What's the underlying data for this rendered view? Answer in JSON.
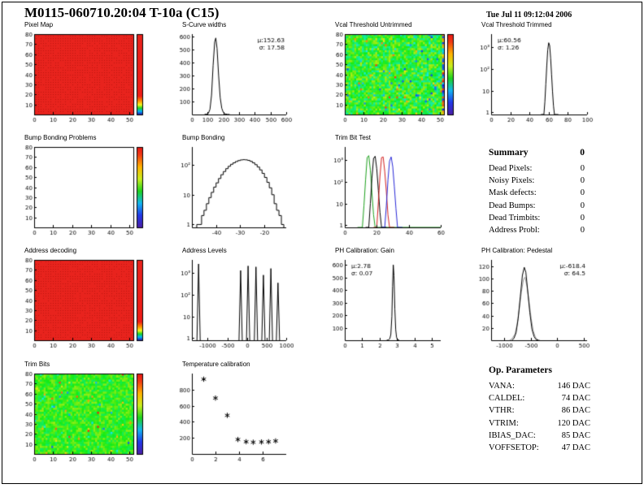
{
  "page": {
    "title": "M0115-060710.20:04 T-10a (C15)",
    "datetime": "Tue Jul 11 09:12:04 2006"
  },
  "summary": {
    "title": "Summary",
    "value": "0",
    "rows": [
      {
        "label": "Dead Pixels:",
        "value": "0"
      },
      {
        "label": "Noisy Pixels:",
        "value": "0"
      },
      {
        "label": "Mask defects:",
        "value": "0"
      },
      {
        "label": "Dead Bumps:",
        "value": "0"
      },
      {
        "label": "Dead Trimbits:",
        "value": "0"
      },
      {
        "label": "Address Probl:",
        "value": "0"
      }
    ]
  },
  "op_parameters": {
    "title": "Op. Parameters",
    "rows": [
      {
        "label": "VANA:",
        "value": "146 DAC"
      },
      {
        "label": "CALDEL:",
        "value": "74 DAC"
      },
      {
        "label": "VTHR:",
        "value": "86 DAC"
      },
      {
        "label": "VTRIM:",
        "value": "120 DAC"
      },
      {
        "label": "IBIAS_DAC:",
        "value": "85 DAC"
      },
      {
        "label": "VOFFSETOP:",
        "value": "47 DAC"
      }
    ]
  },
  "chart_data": [
    {
      "id": "pixel-map",
      "title": "Pixel Map",
      "type": "heatmap",
      "palette": "red",
      "xlim": [
        0,
        52
      ],
      "ylim": [
        0,
        80
      ],
      "xticks": [
        0,
        10,
        20,
        30,
        40,
        50
      ],
      "yticks": [
        10,
        20,
        30,
        40,
        50,
        60,
        70,
        80
      ],
      "colorbar": [
        [
          0,
          "#2318a8"
        ],
        [
          0.04,
          "#00b4ff"
        ],
        [
          0.08,
          "#1ed31e"
        ],
        [
          0.12,
          "#f8f81e"
        ],
        [
          0.17,
          "#ff8c00"
        ],
        [
          0.23,
          "#ee1c16"
        ],
        [
          1,
          "#e8231d"
        ]
      ]
    },
    {
      "id": "s-curve-widths",
      "title": "S-Curve widths",
      "type": "hist",
      "style": "line",
      "xlim": [
        0,
        600
      ],
      "ylim": [
        0,
        620
      ],
      "xticks": [
        0,
        100,
        200,
        300,
        400,
        500,
        600
      ],
      "yticks": [
        100,
        200,
        300,
        400,
        500,
        600
      ],
      "stats": [
        "μ:152.63",
        "σ: 17.58"
      ],
      "stats_pos": "right",
      "points": [
        [
          80,
          0
        ],
        [
          95,
          3
        ],
        [
          105,
          10
        ],
        [
          115,
          40
        ],
        [
          125,
          150
        ],
        [
          135,
          380
        ],
        [
          145,
          560
        ],
        [
          152,
          590
        ],
        [
          160,
          510
        ],
        [
          170,
          300
        ],
        [
          180,
          130
        ],
        [
          190,
          48
        ],
        [
          200,
          16
        ],
        [
          210,
          5
        ],
        [
          225,
          1
        ],
        [
          240,
          0
        ]
      ]
    },
    {
      "id": "vcal-threshold-untrimmed",
      "title": "Vcal Threshold Untrimmed",
      "type": "heatmap",
      "palette": "noise",
      "mean": 0.5,
      "spread": 0.18,
      "outlier": 0.1,
      "edge": true,
      "xlim": [
        0,
        52
      ],
      "ylim": [
        0,
        80
      ],
      "xticks": [
        0,
        10,
        20,
        30,
        40,
        50
      ],
      "yticks": [
        10,
        20,
        30,
        40,
        50,
        60,
        70,
        80
      ],
      "colorbar": [
        [
          0,
          "#4b1fa8"
        ],
        [
          0.15,
          "#2238e8"
        ],
        [
          0.3,
          "#12b6f0"
        ],
        [
          0.45,
          "#1ed31e"
        ],
        [
          0.6,
          "#c8ee1e"
        ],
        [
          0.75,
          "#ffb400"
        ],
        [
          0.9,
          "#f03c14"
        ],
        [
          1,
          "#e81414"
        ]
      ]
    },
    {
      "id": "vcal-threshold-trimmed",
      "title": "Vcal Threshold Trimmed",
      "type": "hist",
      "style": "line",
      "logy": true,
      "xlim": [
        0,
        100
      ],
      "ylim": [
        0.8,
        4000
      ],
      "xticks": [
        0,
        20,
        40,
        60,
        80,
        100
      ],
      "yticks": [
        {
          "v": 1,
          "l": "1"
        },
        {
          "v": 10,
          "l": "10"
        },
        {
          "v": 100,
          "l": "10²"
        },
        {
          "v": 1000,
          "l": "10³"
        }
      ],
      "stats": [
        "μ:60.56",
        "σ: 1.26"
      ],
      "stats_pos": "left",
      "points": [
        [
          52,
          0
        ],
        [
          55,
          0
        ],
        [
          56,
          3
        ],
        [
          57,
          20
        ],
        [
          58,
          140
        ],
        [
          59,
          750
        ],
        [
          60,
          1600
        ],
        [
          61,
          1200
        ],
        [
          62,
          320
        ],
        [
          63,
          55
        ],
        [
          64,
          9
        ],
        [
          65,
          2
        ],
        [
          66,
          0
        ],
        [
          70,
          0
        ]
      ]
    },
    {
      "id": "bump-bonding-problems",
      "title": "Bump Bonding Problems",
      "type": "empty2d",
      "xlim": [
        0,
        52
      ],
      "ylim": [
        0,
        80
      ],
      "xticks": [
        0,
        10,
        20,
        30,
        40,
        50
      ],
      "yticks": [
        10,
        20,
        30,
        40,
        50,
        60,
        70,
        80
      ],
      "colorbar": [
        [
          0,
          "#4b1fa8"
        ],
        [
          0.15,
          "#2238e8"
        ],
        [
          0.3,
          "#12b6f0"
        ],
        [
          0.45,
          "#1ed31e"
        ],
        [
          0.6,
          "#c8ee1e"
        ],
        [
          0.75,
          "#ffb400"
        ],
        [
          0.9,
          "#f03c14"
        ],
        [
          1,
          "#e81414"
        ]
      ]
    },
    {
      "id": "bump-bonding",
      "title": "Bump Bonding",
      "type": "hist",
      "style": "steps",
      "logy": true,
      "xlim": [
        -50,
        -11
      ],
      "ylim": [
        0.8,
        400
      ],
      "xticks": [
        -40,
        -30,
        -20
      ],
      "yticks": [
        {
          "v": 1,
          "l": "1"
        },
        {
          "v": 10,
          "l": "10"
        },
        {
          "v": 100,
          "l": "10²"
        }
      ],
      "bins": {
        "x0": -48,
        "dx": 1,
        "values": [
          1,
          1,
          2,
          3,
          5,
          8,
          12,
          18,
          25,
          35,
          47,
          60,
          75,
          90,
          105,
          118,
          130,
          140,
          147,
          150,
          148,
          142,
          132,
          118,
          102,
          85,
          68,
          52,
          38,
          26,
          17,
          10,
          5,
          3,
          2,
          1
        ]
      }
    },
    {
      "id": "trim-bit-test",
      "title": "Trim Bit Test",
      "type": "multi",
      "logy": true,
      "xlim": [
        0,
        60
      ],
      "ylim": [
        0.8,
        4000
      ],
      "xticks": [
        0,
        20,
        40,
        60
      ],
      "yticks": [
        {
          "v": 1,
          "l": "1"
        },
        {
          "v": 10,
          "l": "10"
        },
        {
          "v": 100,
          "l": "10²"
        },
        {
          "v": 1000,
          "l": "10³"
        }
      ],
      "series": [
        {
          "name": "trim-bits-14",
          "color": "#1ca01c",
          "points": [
            [
              8,
              0
            ],
            [
              11,
              0
            ],
            [
              12,
              8
            ],
            [
              13,
              120
            ],
            [
              14,
              1300
            ],
            [
              15,
              1600
            ],
            [
              16,
              350
            ],
            [
              17,
              30
            ],
            [
              18,
              3
            ],
            [
              19,
              0
            ],
            [
              60,
              0
            ]
          ]
        },
        {
          "name": "trim-bits-19",
          "color": "#000000",
          "points": [
            [
              13,
              0
            ],
            [
              15,
              0
            ],
            [
              16,
              10
            ],
            [
              17,
              150
            ],
            [
              18,
              1200
            ],
            [
              19,
              1500
            ],
            [
              20,
              400
            ],
            [
              21,
              40
            ],
            [
              22,
              4
            ],
            [
              23,
              0
            ],
            [
              26,
              0
            ]
          ]
        },
        {
          "name": "trim-bits-24",
          "color": "#d42020",
          "points": [
            [
              18,
              0
            ],
            [
              20,
              0
            ],
            [
              21,
              12
            ],
            [
              22,
              180
            ],
            [
              23,
              1300
            ],
            [
              24,
              1400
            ],
            [
              25,
              300
            ],
            [
              26,
              35
            ],
            [
              27,
              3
            ],
            [
              28,
              0
            ],
            [
              31,
              0
            ]
          ]
        },
        {
          "name": "trim-bits-29",
          "color": "#2828d8",
          "points": [
            [
              23,
              0
            ],
            [
              25,
              0
            ],
            [
              26,
              8
            ],
            [
              27,
              120
            ],
            [
              28,
              900
            ],
            [
              29,
              1400
            ],
            [
              30,
              500
            ],
            [
              31,
              60
            ],
            [
              32,
              6
            ],
            [
              33,
              0
            ],
            [
              36,
              0
            ]
          ]
        }
      ]
    },
    {
      "id": "address-decoding",
      "title": "Address decoding",
      "type": "heatmap",
      "palette": "red",
      "xlim": [
        0,
        52
      ],
      "ylim": [
        0,
        80
      ],
      "xticks": [
        0,
        10,
        20,
        30,
        40,
        50
      ],
      "yticks": [
        10,
        20,
        30,
        40,
        50,
        60,
        70,
        80
      ],
      "colorbar": [
        [
          0,
          "#2318a8"
        ],
        [
          0.04,
          "#00b4ff"
        ],
        [
          0.08,
          "#1ed31e"
        ],
        [
          0.12,
          "#f8f81e"
        ],
        [
          0.17,
          "#ff8c00"
        ],
        [
          0.23,
          "#ee1c16"
        ],
        [
          1,
          "#e8231d"
        ]
      ]
    },
    {
      "id": "address-levels",
      "title": "Address Levels",
      "type": "spikes",
      "logy": true,
      "xlim": [
        -1400,
        1000
      ],
      "ylim": [
        0.8,
        4000
      ],
      "xticks": [
        -1000,
        -500,
        0,
        500,
        1000
      ],
      "yticks": [
        {
          "v": 1,
          "l": "1"
        },
        {
          "v": 10,
          "l": "10"
        },
        {
          "v": 100,
          "l": "10²"
        },
        {
          "v": 1000,
          "l": "10³"
        }
      ],
      "spikes": [
        [
          -1230,
          2600
        ],
        [
          -160,
          1300
        ],
        [
          30,
          2100
        ],
        [
          230,
          1900
        ],
        [
          420,
          800
        ],
        [
          610,
          1600
        ],
        [
          790,
          350
        ]
      ]
    },
    {
      "id": "ph-calibration-gain",
      "title": "PH Calibration: Gain",
      "type": "hist",
      "style": "line",
      "xlim": [
        0,
        5.5
      ],
      "ylim": [
        0,
        640
      ],
      "xticks": [
        0,
        1,
        2,
        3,
        4,
        5
      ],
      "yticks": [
        100,
        200,
        300,
        400,
        500,
        600
      ],
      "stats": [
        "μ:2.78",
        "σ: 0.07"
      ],
      "stats_pos": "left",
      "points": [
        [
          2.4,
          0
        ],
        [
          2.5,
          3
        ],
        [
          2.58,
          12
        ],
        [
          2.64,
          45
        ],
        [
          2.7,
          190
        ],
        [
          2.74,
          430
        ],
        [
          2.78,
          600
        ],
        [
          2.82,
          515
        ],
        [
          2.87,
          250
        ],
        [
          2.92,
          85
        ],
        [
          2.97,
          22
        ],
        [
          3.03,
          5
        ],
        [
          3.12,
          0
        ]
      ]
    },
    {
      "id": "ph-calibration-pedestal",
      "title": "PH Calibration: Pedestal",
      "type": "multi",
      "xlim": [
        -1250,
        560
      ],
      "ylim": [
        0,
        130
      ],
      "xticks": [
        -1000,
        -500,
        0,
        500
      ],
      "yticks": [
        20,
        40,
        60,
        80,
        100,
        120
      ],
      "stats": [
        "μ:-618.4",
        "σ: 64.5"
      ],
      "stats_pos": "right",
      "series": [
        {
          "name": "pedestal-wide",
          "color": "#999999",
          "points": [
            [
              -900,
              0
            ],
            [
              -850,
              3
            ],
            [
              -800,
              10
            ],
            [
              -760,
              25
            ],
            [
              -720,
              50
            ],
            [
              -680,
              78
            ],
            [
              -640,
              98
            ],
            [
              -610,
              102
            ],
            [
              -575,
              88
            ],
            [
              -535,
              62
            ],
            [
              -495,
              35
            ],
            [
              -455,
              15
            ],
            [
              -415,
              5
            ],
            [
              -375,
              1
            ],
            [
              -330,
              0
            ]
          ]
        },
        {
          "name": "pedestal-main",
          "color": "#000000",
          "points": [
            [
              -860,
              0
            ],
            [
              -820,
              3
            ],
            [
              -780,
              12
            ],
            [
              -740,
              35
            ],
            [
              -700,
              70
            ],
            [
              -660,
              105
            ],
            [
              -625,
              118
            ],
            [
              -595,
              110
            ],
            [
              -560,
              80
            ],
            [
              -520,
              45
            ],
            [
              -480,
              18
            ],
            [
              -440,
              6
            ],
            [
              -400,
              1
            ],
            [
              -360,
              0
            ]
          ]
        }
      ]
    },
    {
      "id": "trim-bits",
      "title": "Trim Bits",
      "type": "heatmap",
      "palette": "noise",
      "mean": 0.53,
      "spread": 0.12,
      "outlier": 0.04,
      "xlim": [
        0,
        52
      ],
      "ylim": [
        0,
        80
      ],
      "xticks": [
        0,
        10,
        20,
        30,
        40,
        50
      ],
      "yticks": [
        10,
        20,
        30,
        40,
        50,
        60,
        70,
        80
      ],
      "colorbar": [
        [
          0,
          "#4b1fa8"
        ],
        [
          0.15,
          "#2238e8"
        ],
        [
          0.3,
          "#12b6f0"
        ],
        [
          0.45,
          "#1ed31e"
        ],
        [
          0.6,
          "#c8ee1e"
        ],
        [
          0.75,
          "#ffb400"
        ],
        [
          0.9,
          "#f03c14"
        ],
        [
          1,
          "#e81414"
        ]
      ]
    },
    {
      "id": "temperature-calibration",
      "title": "Temperature calibration",
      "type": "scatter",
      "xlim": [
        0,
        8
      ],
      "ylim": [
        0,
        1000
      ],
      "xticks": [
        0,
        2,
        4,
        6
      ],
      "yticks": [
        200,
        400,
        600,
        800
      ],
      "points": [
        [
          1,
          930
        ],
        [
          2,
          695
        ],
        [
          3,
          480
        ],
        [
          3.9,
          180
        ],
        [
          4.6,
          152
        ],
        [
          5.2,
          146
        ],
        [
          5.9,
          149
        ],
        [
          6.5,
          152
        ],
        [
          7.1,
          162
        ]
      ]
    }
  ]
}
